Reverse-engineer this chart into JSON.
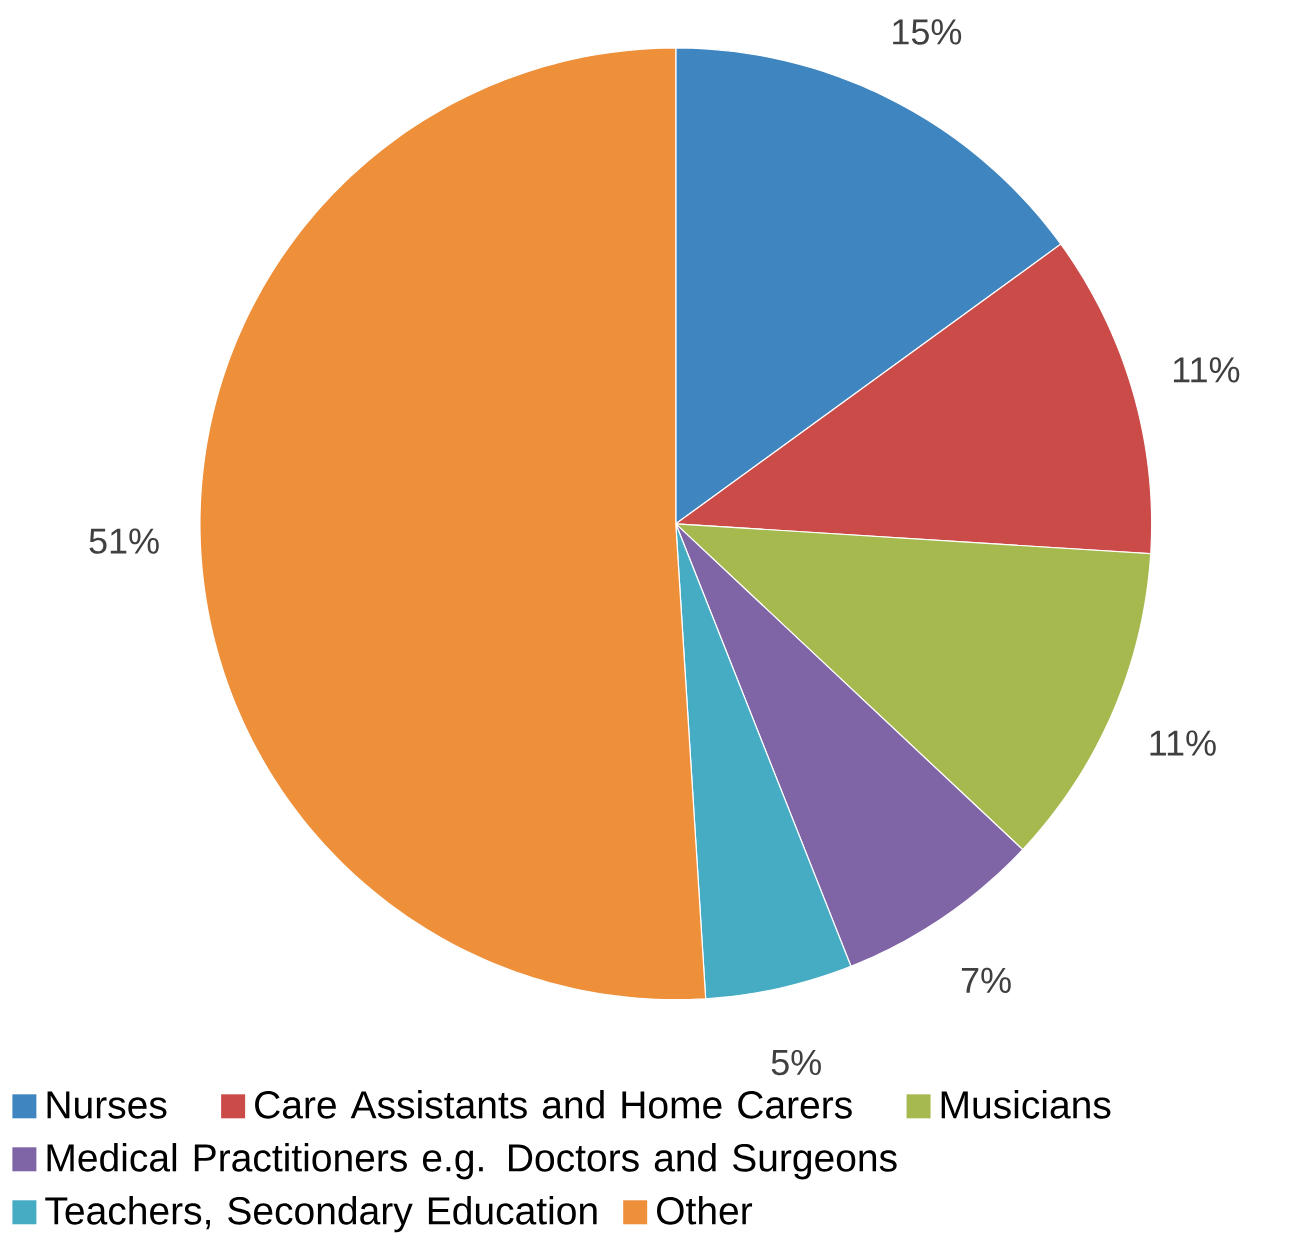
{
  "chart_data": {
    "type": "pie",
    "categories": [
      "Nurses",
      "Care Assistants and Home Carers",
      "Musicians",
      "Medical Practitioners e.g. Doctors and Surgeons",
      "Teachers, Secondary Education",
      "Other"
    ],
    "values": [
      15,
      11,
      11,
      7,
      5,
      51
    ],
    "value_labels": [
      "15%",
      "11%",
      "11%",
      "7%",
      "5%",
      "51%"
    ],
    "colors": [
      "#3f86c0",
      "#cb4b48",
      "#a5b94f",
      "#7f64a6",
      "#46acc4",
      "#ee8f3a"
    ],
    "legend": "bottom"
  }
}
